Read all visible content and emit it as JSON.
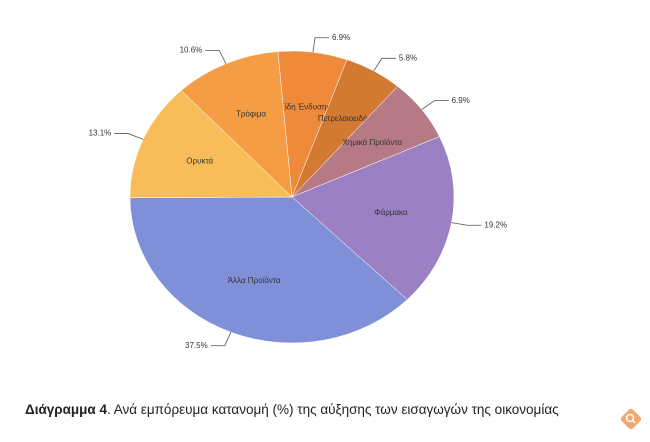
{
  "chart_data": {
    "type": "pie",
    "categories": [
      "Είδη Ένδυσης",
      "Πετρελαιοειδή",
      "Χημικά Προϊόντα",
      "Φάρμακα",
      "Άλλα Προϊόντα",
      "Ορυκτά",
      "Τρόφιμα"
    ],
    "values": [
      6.9,
      5.8,
      6.9,
      19.2,
      37.5,
      13.1,
      10.6
    ],
    "value_labels": [
      "6.9%",
      "5.8%",
      "6.9%",
      "19.2%",
      "37.5%",
      "13.1%",
      "10.6%"
    ],
    "colors": [
      "#ee8a3a",
      "#d27a32",
      "#b57a85",
      "#9c80c4",
      "#7f8fd8",
      "#f8bd58",
      "#f59d45"
    ]
  },
  "caption": {
    "label": "Διάγραμμα 4",
    "text": ". Ανά εμπόρευμα κατανομή (%) της αύξησης των εισαγωγών της οικονομίας"
  }
}
